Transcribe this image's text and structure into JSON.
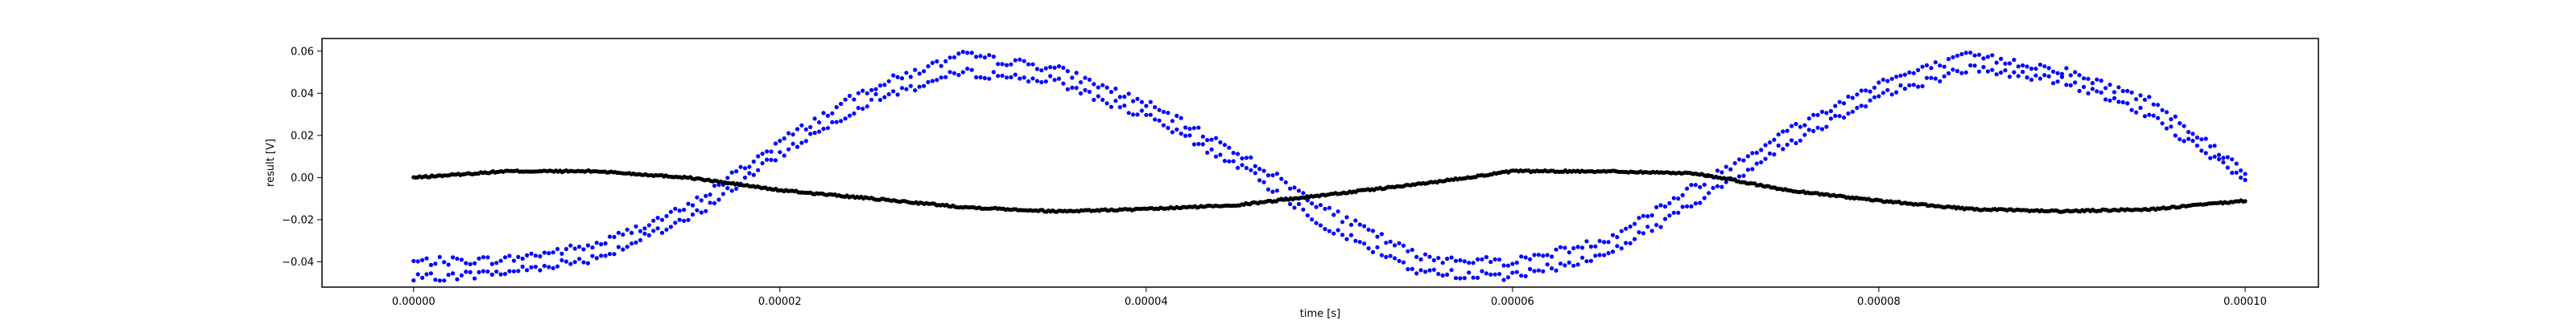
{
  "chart_data": {
    "type": "scatter",
    "xlabel": "time [s]",
    "ylabel": "result [V]",
    "xlim": [
      -5e-06,
      0.000104
    ],
    "ylim": [
      -0.052,
      0.066
    ],
    "x_ticks": [
      {
        "value": 0.0,
        "label": "0.00000"
      },
      {
        "value": 2e-05,
        "label": "0.00002"
      },
      {
        "value": 4e-05,
        "label": "0.00004"
      },
      {
        "value": 6e-05,
        "label": "0.00006"
      },
      {
        "value": 8e-05,
        "label": "0.00008"
      },
      {
        "value": 0.0001,
        "label": "0.00010"
      }
    ],
    "y_ticks": [
      {
        "value": -0.04,
        "label": "−0.04"
      },
      {
        "value": -0.02,
        "label": "−0.02"
      },
      {
        "value": 0.0,
        "label": "0.00"
      },
      {
        "value": 0.02,
        "label": "0.02"
      },
      {
        "value": 0.04,
        "label": "0.04"
      },
      {
        "value": 0.06,
        "label": "0.06"
      }
    ],
    "grid": false,
    "legend": "none",
    "series": [
      {
        "color": "#0000ff",
        "x": [
          0.0,
          5e-06,
          1e-05,
          1.5e-05,
          2e-05,
          2.5e-05,
          3e-05,
          3.5e-05,
          4e-05,
          4.5e-05,
          5e-05,
          5.5e-05,
          6e-05,
          6.5e-05,
          7e-05,
          7.5e-05,
          8e-05,
          8.5e-05,
          9e-05,
          9.5e-05,
          0.0001
        ],
        "upper": [
          -0.04,
          -0.039,
          -0.032,
          -0.014,
          0.017,
          0.043,
          0.058,
          0.052,
          0.035,
          0.012,
          -0.016,
          -0.038,
          -0.04,
          -0.03,
          -0.004,
          0.022,
          0.045,
          0.058,
          0.051,
          0.036,
          0.003
        ],
        "lower": [
          -0.048,
          -0.045,
          -0.038,
          -0.02,
          0.011,
          0.037,
          0.05,
          0.046,
          0.029,
          0.006,
          -0.024,
          -0.045,
          -0.047,
          -0.037,
          -0.012,
          0.016,
          0.039,
          0.052,
          0.046,
          0.029,
          -0.002
        ]
      },
      {
        "color": "#000000",
        "x": [
          0.0,
          5e-06,
          1e-05,
          1.5e-05,
          2e-05,
          2.5e-05,
          3e-05,
          3.5e-05,
          4e-05,
          4.5e-05,
          5e-05,
          5.5e-05,
          6e-05,
          6.5e-05,
          7e-05,
          7.5e-05,
          8e-05,
          8.5e-05,
          9e-05,
          9.5e-05,
          0.0001
        ],
        "y": [
          0.0,
          0.003,
          0.003,
          0.0,
          -0.006,
          -0.01,
          -0.014,
          -0.016,
          -0.015,
          -0.013,
          -0.008,
          -0.003,
          0.003,
          0.003,
          0.002,
          -0.006,
          -0.011,
          -0.015,
          -0.016,
          -0.015,
          -0.011
        ]
      }
    ]
  }
}
